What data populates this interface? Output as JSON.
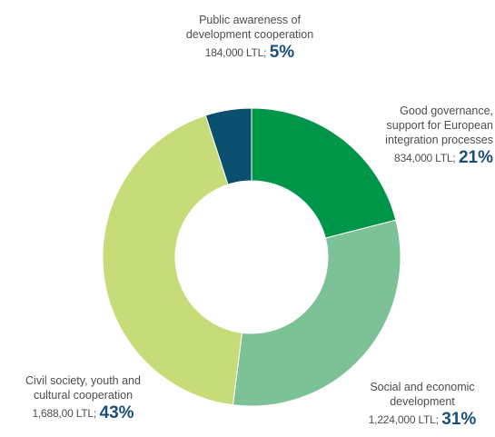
{
  "chart_data": {
    "type": "pie",
    "donut": true,
    "title": "",
    "slices": [
      {
        "name": "Good governance,\nsupport for European\nintegration processes",
        "amount": "834,000 LTL;",
        "percent_label": "21%",
        "value": 21,
        "color": "#00964a"
      },
      {
        "name": "Social and economic\ndevelopment",
        "amount": "1,224,000 LTL;",
        "percent_label": "31%",
        "value": 31,
        "color": "#7dc196"
      },
      {
        "name": "Civil society, youth and\ncultural cooperation",
        "amount": "1,688,00 LTL;",
        "percent_label": "43%",
        "value": 43,
        "color": "#c5dc78"
      },
      {
        "name": "Public awareness of\ndevelopment cooperation",
        "amount": "184,000 LTL;",
        "percent_label": "5%",
        "value": 5,
        "color": "#0a4f6e"
      }
    ],
    "start_angle_deg": 0,
    "direction": "clockwise"
  }
}
